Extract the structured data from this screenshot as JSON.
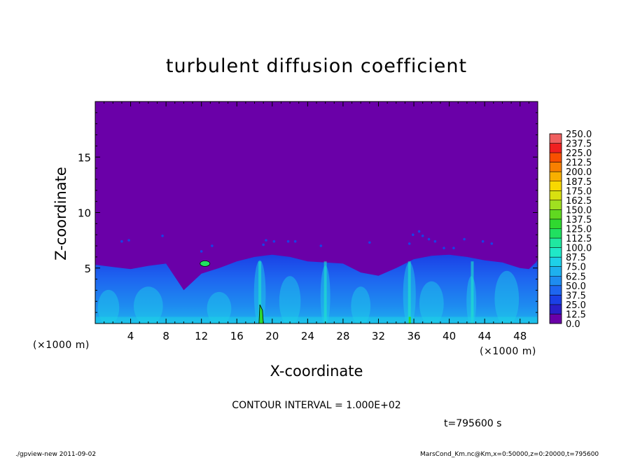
{
  "chart_data": {
    "type": "heatmap",
    "title": "turbulent diffusion coefficient",
    "xlabel": "X-coordinate",
    "ylabel": "Z-coordinate",
    "x_unit": "(×1000 m)",
    "y_unit": "(×1000 m)",
    "xlim": [
      0,
      50
    ],
    "ylim": [
      0,
      20
    ],
    "xticks": [
      4,
      8,
      12,
      16,
      20,
      24,
      28,
      32,
      36,
      40,
      44,
      48
    ],
    "yticks": [
      5,
      10,
      15
    ],
    "colorbar": {
      "levels": [
        "0.0",
        "12.5",
        "25.0",
        "37.5",
        "50.0",
        "62.5",
        "75.0",
        "87.5",
        "100.0",
        "112.5",
        "125.0",
        "137.5",
        "150.0",
        "162.5",
        "175.0",
        "187.5",
        "200.0",
        "212.5",
        "225.0",
        "237.5",
        "250.0"
      ],
      "colors": [
        "#6a00a8",
        "#2a1fc8",
        "#1a40e6",
        "#1e66f0",
        "#1e8cf0",
        "#1eb0ee",
        "#1ed0e8",
        "#20e8c8",
        "#20e8a0",
        "#20e060",
        "#30d830",
        "#60d820",
        "#a0e020",
        "#d8e010",
        "#f8d800",
        "#f8b000",
        "#f88000",
        "#f85000",
        "#f02020",
        "#f06060"
      ]
    },
    "annotations": {
      "contour_interval": "CONTOUR INTERVAL = 1.000E+02",
      "time": "t=795600 s",
      "footer_left": "./gpview-new  2011-09-02",
      "footer_right": "MarsCond_Km.nc@Km,x=0:50000,z=0:20000,t=795600"
    },
    "field_summary": {
      "background_value": 0.0,
      "boundary_layer_top": [
        5.3,
        5.1,
        4.9,
        5.2,
        5.4,
        3.0,
        4.5,
        5.0,
        5.6,
        6.0,
        6.2,
        6.0,
        5.6,
        5.5,
        5.4,
        4.6,
        4.3,
        5.0,
        5.8,
        6.1,
        6.2,
        6.0,
        5.7,
        5.5,
        5.0,
        4.9,
        5.3,
        5.5,
        5.8
      ],
      "boundary_layer_x": [
        0,
        2,
        4,
        6,
        8,
        10,
        12,
        14,
        16,
        18,
        20,
        22,
        24,
        26,
        28,
        30,
        32,
        34,
        36,
        38,
        40,
        42,
        44,
        46,
        48,
        49,
        49.5,
        49.8,
        50
      ]
    }
  }
}
